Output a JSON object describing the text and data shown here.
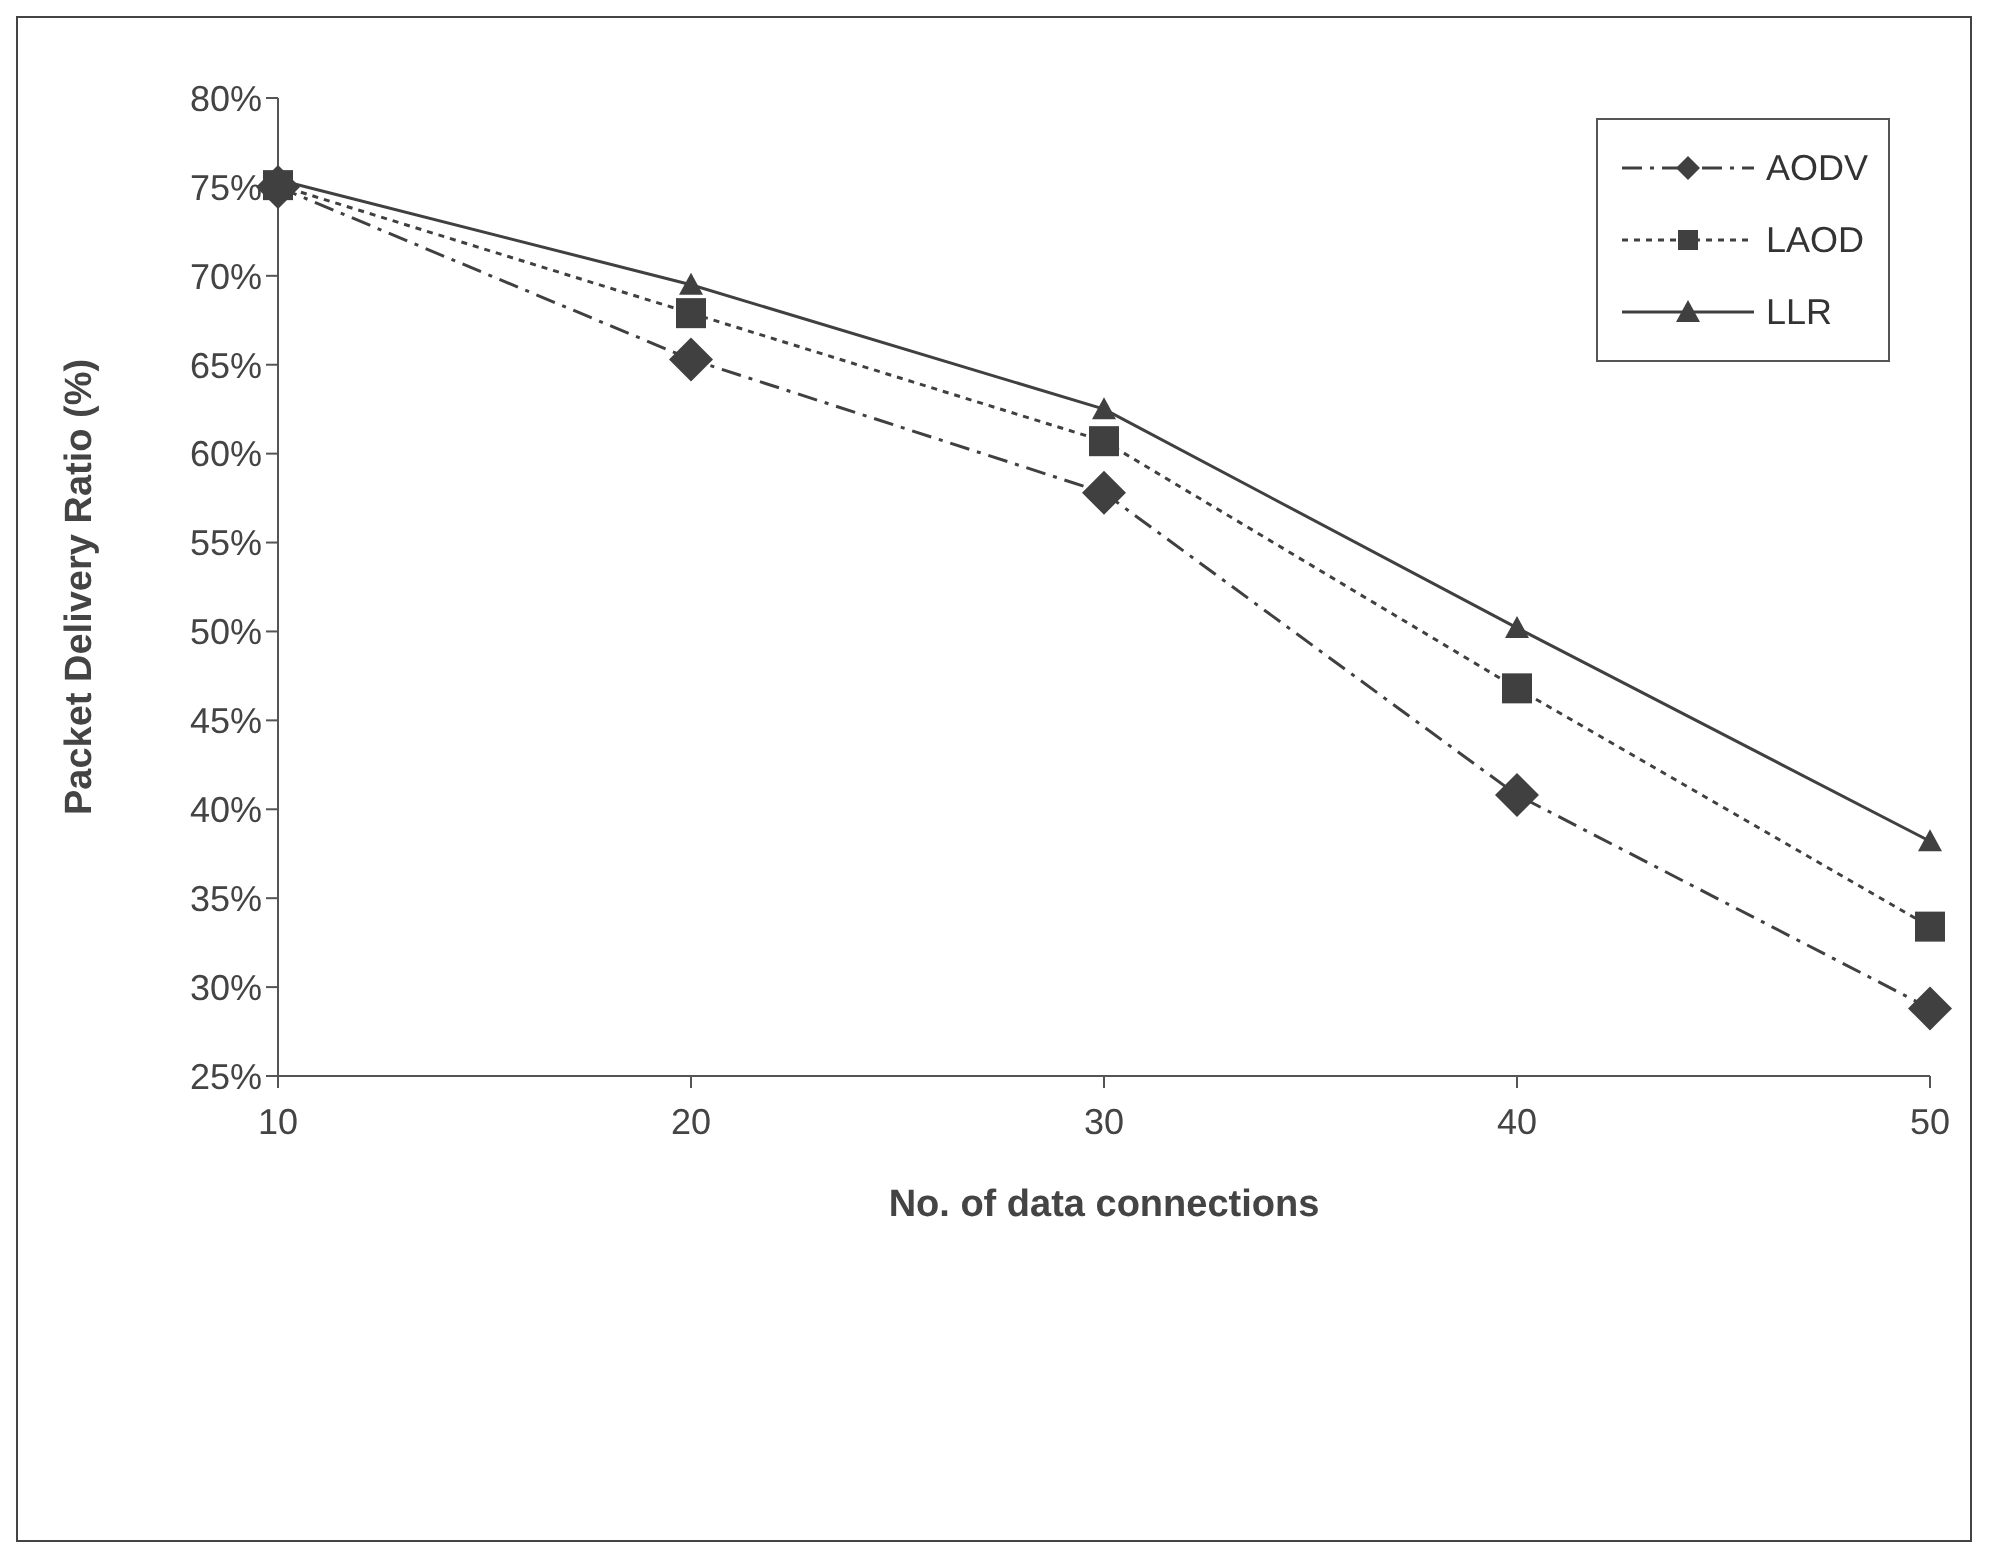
{
  "chart_data": {
    "type": "line",
    "xlabel": "No. of data connections",
    "ylabel": "Packet Delivery Ratio (%)",
    "categories": [
      "10",
      "20",
      "30",
      "40",
      "50"
    ],
    "series": [
      {
        "name": "AODV",
        "color": "#404040",
        "marker": "diamond",
        "line_style": "dashdot",
        "values": [
          75.0,
          65.3,
          57.8,
          40.8,
          28.8
        ]
      },
      {
        "name": "LAOD",
        "color": "#404040",
        "marker": "square",
        "line_style": "dotted",
        "values": [
          75.1,
          67.9,
          60.7,
          46.8,
          33.4
        ]
      },
      {
        "name": "LLR",
        "color": "#404040",
        "marker": "triangle",
        "line_style": "solid",
        "values": [
          75.4,
          69.5,
          62.5,
          50.2,
          38.2
        ]
      }
    ],
    "ylim": [
      25,
      80
    ],
    "yticks": [
      {
        "value": 25,
        "label": "25%"
      },
      {
        "value": 30,
        "label": "30%"
      },
      {
        "value": 35,
        "label": "35%"
      },
      {
        "value": 40,
        "label": "40%"
      },
      {
        "value": 45,
        "label": "45%"
      },
      {
        "value": 50,
        "label": "50%"
      },
      {
        "value": 55,
        "label": "55%"
      },
      {
        "value": 60,
        "label": "60%"
      },
      {
        "value": 65,
        "label": "65%"
      },
      {
        "value": 70,
        "label": "70%"
      },
      {
        "value": 75,
        "label": "75%"
      },
      {
        "value": 80,
        "label": "80%"
      }
    ],
    "grid": false,
    "legend": "top right"
  }
}
